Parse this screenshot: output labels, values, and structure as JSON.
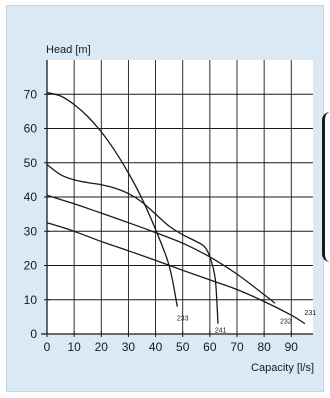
{
  "chart_data": {
    "type": "line",
    "ylabel": "Head [m]",
    "xlabel": "Capacity [l/s]",
    "xlim": [
      0,
      98
    ],
    "ylim": [
      0,
      80
    ],
    "x_ticks": [
      0,
      10,
      20,
      30,
      40,
      50,
      60,
      70,
      80,
      90
    ],
    "y_ticks": [
      0,
      10,
      20,
      30,
      40,
      50,
      60,
      70
    ],
    "grid": true,
    "line_color": "#1a1a1a",
    "background": "#dbe9f4",
    "series": [
      {
        "name": "233",
        "x": [
          0,
          5,
          10,
          15,
          20,
          25,
          30,
          35,
          40,
          45,
          48
        ],
        "y": [
          70.5,
          69.5,
          67,
          63.5,
          59,
          53.5,
          47,
          39.5,
          30.5,
          20,
          8
        ]
      },
      {
        "name": "241",
        "x": [
          0,
          5,
          10,
          15,
          20,
          25,
          30,
          35,
          40,
          45,
          50,
          55,
          58,
          60,
          62,
          63
        ],
        "y": [
          49.5,
          46.5,
          45,
          44.2,
          43.6,
          42.6,
          41,
          38.5,
          35,
          31.5,
          29,
          27,
          25.5,
          22.5,
          16,
          3
        ]
      },
      {
        "name": "232",
        "x": [
          0,
          10,
          20,
          30,
          40,
          50,
          60,
          70,
          80,
          84
        ],
        "y": [
          40.5,
          38,
          35.3,
          32.5,
          29.6,
          26.5,
          22.5,
          17.5,
          11.5,
          9
        ]
      },
      {
        "name": "231",
        "x": [
          0,
          10,
          20,
          30,
          40,
          50,
          60,
          70,
          80,
          90,
          95
        ],
        "y": [
          32.5,
          30,
          27,
          24.3,
          21.5,
          18.6,
          15.8,
          13,
          9.5,
          5.5,
          3
        ]
      }
    ],
    "curve_labels": [
      {
        "text": "233",
        "x": 50,
        "y": 4
      },
      {
        "text": "241",
        "x": 64,
        "y": 0.5
      },
      {
        "text": "232",
        "x": 88,
        "y": 3
      },
      {
        "text": "231",
        "x": 97,
        "y": 5.5
      }
    ]
  }
}
